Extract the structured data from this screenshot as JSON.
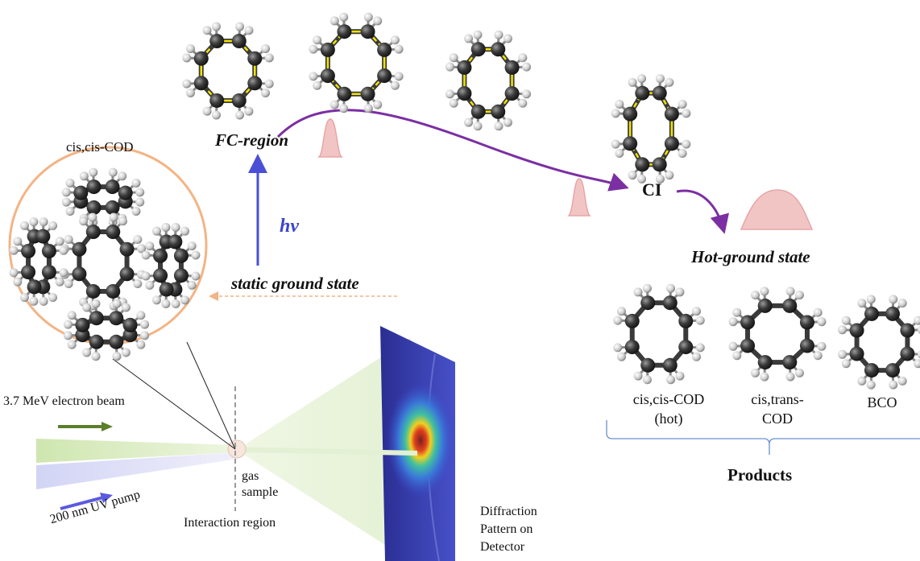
{
  "labels": {
    "fc_region": "FC-region",
    "ci": "CI",
    "hot_ground": "Hot-ground state",
    "hv": "hν",
    "static_ground": "static ground state",
    "cis_cis_cod_title": "cis,cis-COD",
    "electron_beam": "3.7 MeV electron beam",
    "uv_pump": "200 nm UV pump",
    "gas_sample": [
      "gas",
      "sample"
    ],
    "interaction_region": "Interaction region",
    "diffraction": [
      "Diffraction",
      "Pattern on",
      "Detector"
    ],
    "products_title": "Products"
  },
  "products": [
    {
      "lines": [
        "cis,cis-COD",
        "(hot)"
      ]
    },
    {
      "lines": [
        "cis,trans-",
        "COD"
      ]
    },
    {
      "lines": [
        "BCO"
      ]
    }
  ],
  "colors": {
    "trajectory_arrow": "#7b2fa3",
    "hv_arrow": "#4b4fd6",
    "hv_text": "#3c45d0",
    "electron_arrow": "#5a7f2a",
    "uv_arrow": "#5a5ae0",
    "circle": "#f3b485",
    "wavepacket": "#e8a5a5",
    "bond_highlight": "#f2e300",
    "detector": "#2b2f8f",
    "bracket": "#6a8fd0"
  }
}
